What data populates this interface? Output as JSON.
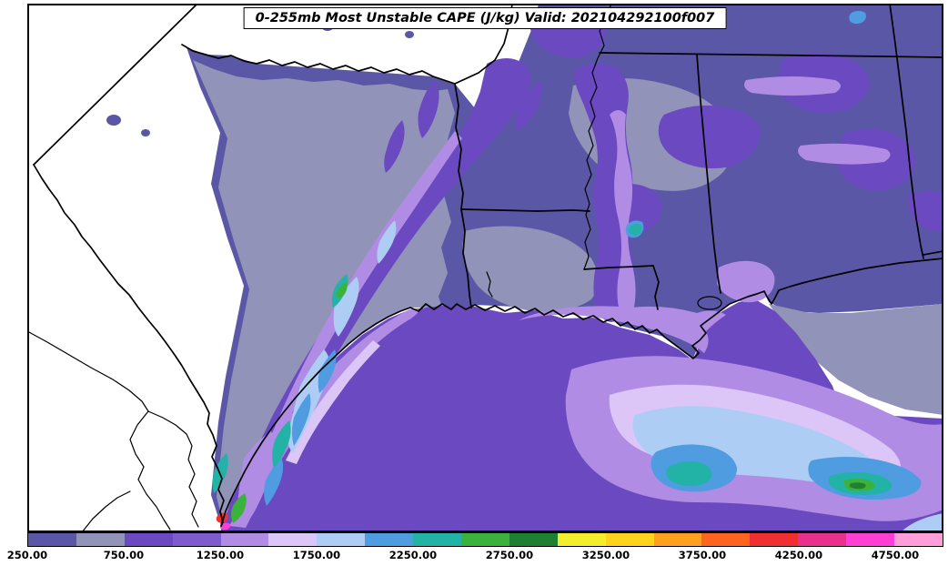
{
  "title": {
    "text": "0-255mb Most Unstable CAPE (J/kg) Valid: 202104292100f007"
  },
  "chart_data": {
    "type": "heatmap",
    "title": "0-255mb Most Unstable CAPE (J/kg) Valid: 202104292100f007",
    "variable": "0-255mb Most Unstable CAPE",
    "units": "J/kg",
    "valid_time": "202104292100f007",
    "legend_position": "bottom",
    "colorbar": {
      "orientation": "horizontal",
      "min": 250,
      "max": 5000,
      "tick_values": [
        250,
        750,
        1250,
        1750,
        2250,
        2750,
        3250,
        3750,
        4250,
        4750
      ],
      "tick_labels": [
        "250.00",
        "750.00",
        "1250.00",
        "1750.00",
        "2250.00",
        "2750.00",
        "3250.00",
        "3750.00",
        "4250.00",
        "4750.00"
      ],
      "levels": [
        {
          "from": 250,
          "to": 500,
          "color": "#5b57a7",
          "name": "slate-blue"
        },
        {
          "from": 500,
          "to": 750,
          "color": "#9193b8",
          "name": "gray-lavender"
        },
        {
          "from": 750,
          "to": 1000,
          "color": "#6b49c1",
          "name": "purple"
        },
        {
          "from": 1000,
          "to": 1250,
          "color": "#7e5ccd",
          "name": "medium-purple"
        },
        {
          "from": 1250,
          "to": 1500,
          "color": "#b18ce4",
          "name": "light-purple"
        },
        {
          "from": 1500,
          "to": 1750,
          "color": "#dcc6f7",
          "name": "pale-lavender"
        },
        {
          "from": 1750,
          "to": 2000,
          "color": "#aecdf4",
          "name": "pale-blue"
        },
        {
          "from": 2000,
          "to": 2250,
          "color": "#4f9ce0",
          "name": "blue"
        },
        {
          "from": 2250,
          "to": 2500,
          "color": "#23b2a6",
          "name": "teal"
        },
        {
          "from": 2500,
          "to": 2750,
          "color": "#3cb13c",
          "name": "green"
        },
        {
          "from": 2750,
          "to": 3000,
          "color": "#1f8032",
          "name": "dark-green"
        },
        {
          "from": 3000,
          "to": 3250,
          "color": "#f2ee2e",
          "name": "yellow"
        },
        {
          "from": 3250,
          "to": 3500,
          "color": "#ffd21f",
          "name": "gold"
        },
        {
          "from": 3500,
          "to": 3750,
          "color": "#ffa01e",
          "name": "orange"
        },
        {
          "from": 3750,
          "to": 4000,
          "color": "#ff6320",
          "name": "orange-red"
        },
        {
          "from": 4000,
          "to": 4250,
          "color": "#f03030",
          "name": "red"
        },
        {
          "from": 4250,
          "to": 4500,
          "color": "#e8308c",
          "name": "crimson"
        },
        {
          "from": 4500,
          "to": 4750,
          "color": "#ff3fd4",
          "name": "magenta"
        },
        {
          "from": 4750,
          "to": 5000,
          "color": "#ff9ed8",
          "name": "pink"
        }
      ]
    }
  }
}
